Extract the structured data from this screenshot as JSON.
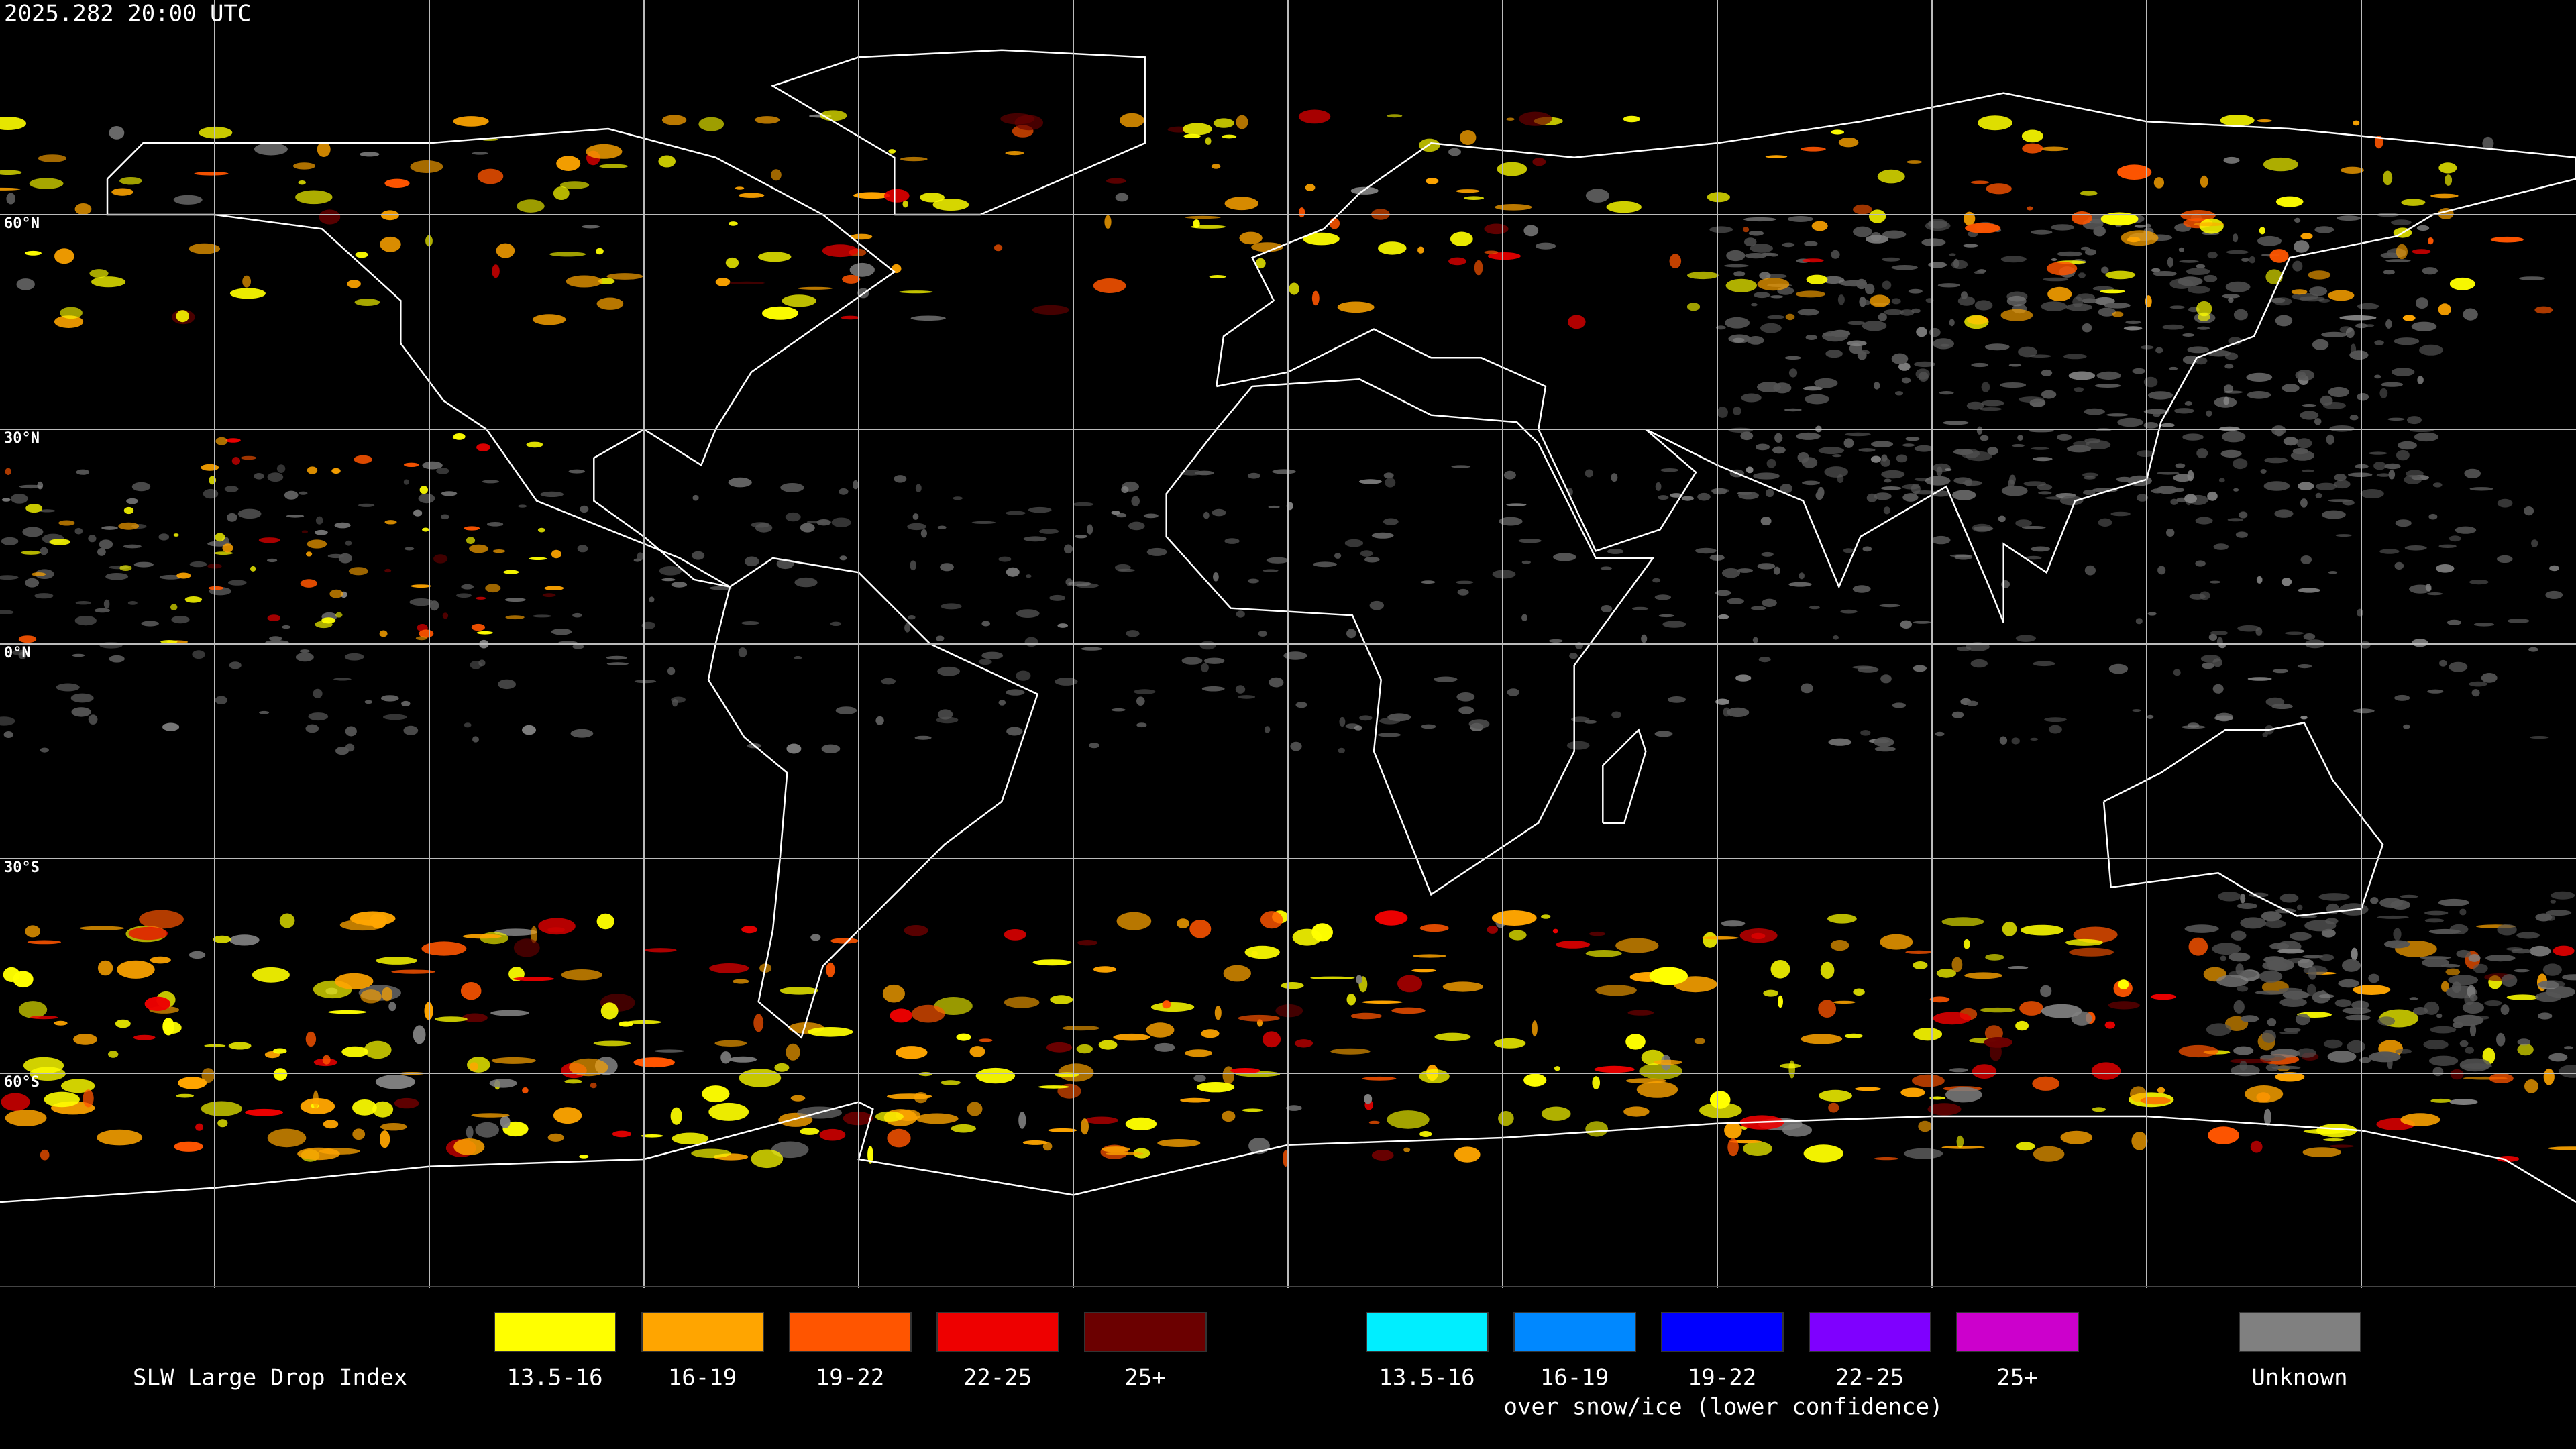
{
  "header": {
    "timestamp": "2025.282 20:00 UTC"
  },
  "map": {
    "lat_labels": [
      "60°N",
      "30°N",
      "0°N",
      "30°S",
      "60°S"
    ]
  },
  "legend": {
    "title": "SLW Large Drop Index",
    "main": [
      {
        "label": "13.5-16",
        "color": "#ffff00"
      },
      {
        "label": "16-19",
        "color": "#ffa500"
      },
      {
        "label": "19-22",
        "color": "#ff5500"
      },
      {
        "label": "22-25",
        "color": "#ee0000"
      },
      {
        "label": "25+",
        "color": "#6b0000"
      }
    ],
    "snow_ice": [
      {
        "label": "13.5-16",
        "color": "#00eeff"
      },
      {
        "label": "16-19",
        "color": "#0088ff"
      },
      {
        "label": "19-22",
        "color": "#0000ff"
      },
      {
        "label": "22-25",
        "color": "#7f00ff"
      },
      {
        "label": "25+",
        "color": "#cc00cc"
      }
    ],
    "snow_ice_caption": "over snow/ice (lower confidence)",
    "unknown": {
      "label": "Unknown",
      "color": "#808080"
    }
  }
}
